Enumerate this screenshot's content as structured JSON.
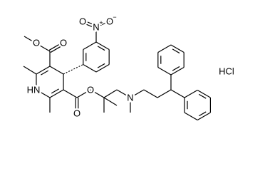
{
  "ester_top": {
    "carbonyl_o": "O",
    "ether_o": "O"
  },
  "nitro": {
    "o_left": "O",
    "n": "N",
    "n_charge": "+",
    "o_right": "O",
    "o_charge": "−"
  },
  "ring_nh": "HN",
  "ester_bottom": {
    "carbonyl_o": "O",
    "ether_o": "O"
  },
  "amine_n": "N",
  "salt": "HCl"
}
